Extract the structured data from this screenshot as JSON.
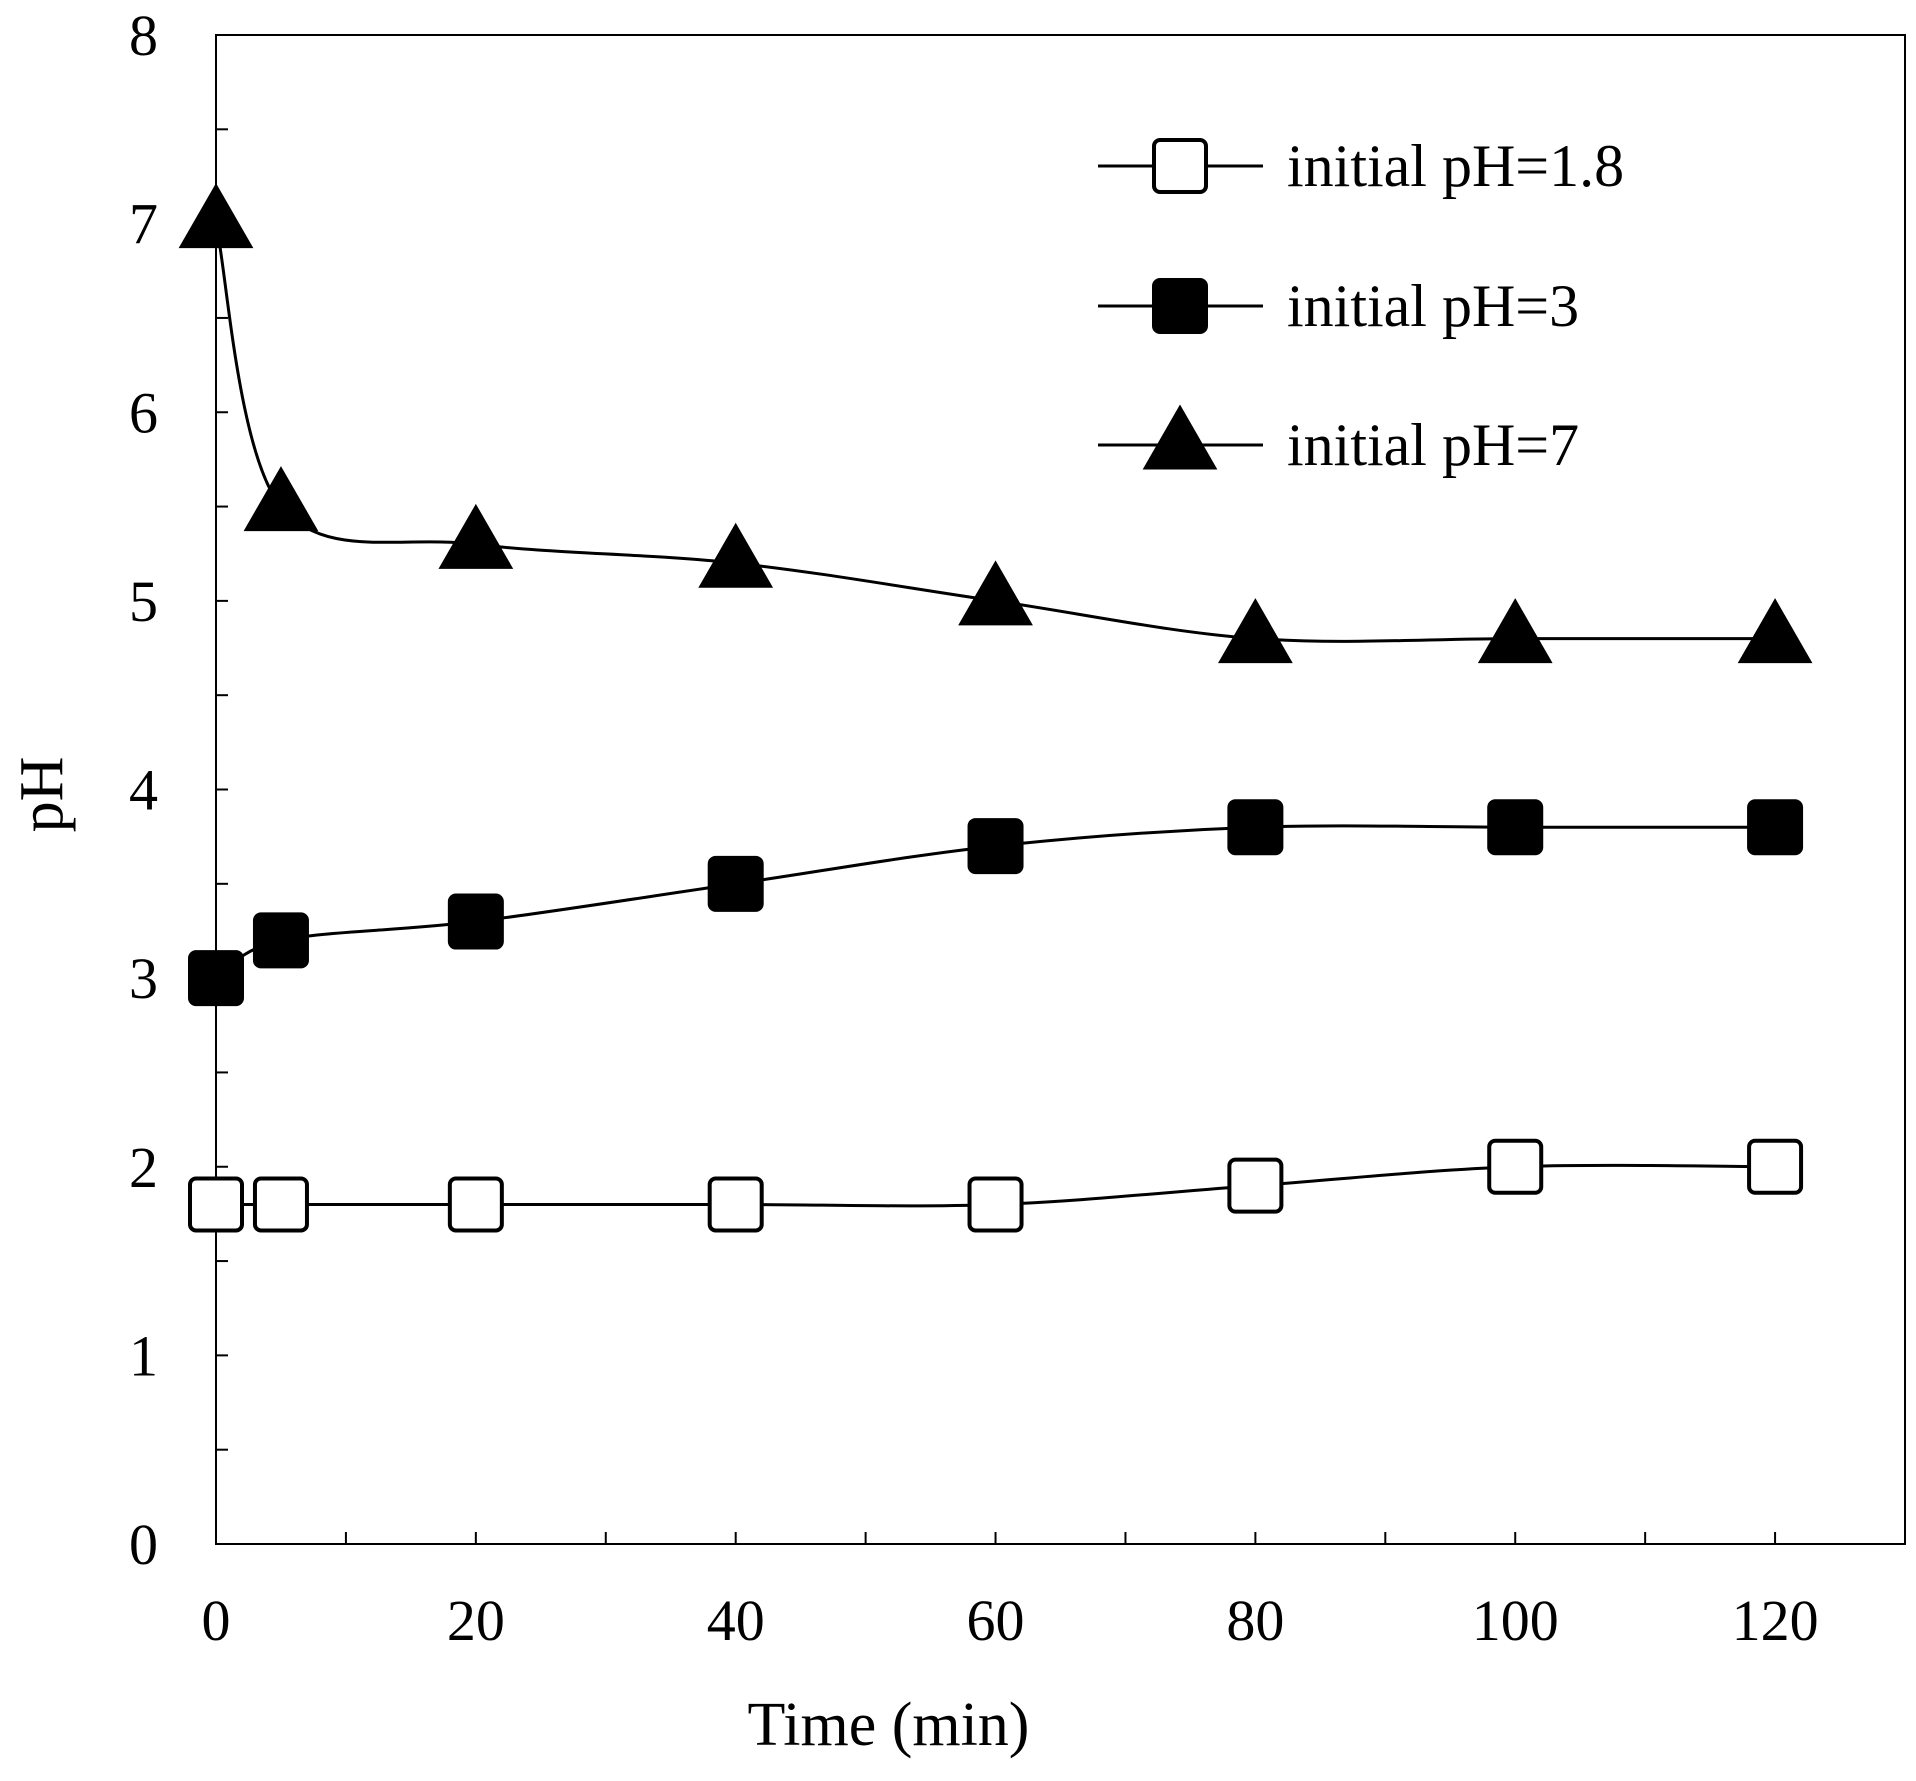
{
  "chart_data": {
    "type": "line",
    "title": "",
    "xlabel": "Time (min)",
    "ylabel": "pH",
    "xlim": [
      0,
      130
    ],
    "ylim": [
      0,
      8
    ],
    "x_ticks": [
      0,
      20,
      40,
      60,
      80,
      100,
      120
    ],
    "x_tick_labels": [
      "0",
      "20",
      "40",
      "60",
      "80",
      "100",
      "120"
    ],
    "y_ticks": [
      0,
      1,
      2,
      3,
      4,
      5,
      6,
      7,
      8
    ],
    "y_tick_labels": [
      "0",
      "1",
      "2",
      "3",
      "4",
      "5",
      "6",
      "7",
      "8"
    ],
    "x_minor_step": 10,
    "y_minor_step": 0.5,
    "grid": false,
    "legend_position": "top-right",
    "x": [
      0,
      5,
      20,
      40,
      60,
      80,
      100,
      120
    ],
    "series": [
      {
        "name": "initial pH=1.8",
        "marker": "square-open",
        "values": [
          1.8,
          1.8,
          1.8,
          1.8,
          1.8,
          1.9,
          2.0,
          2.0
        ]
      },
      {
        "name": "initial pH=3",
        "marker": "square-filled",
        "values": [
          3.0,
          3.2,
          3.3,
          3.5,
          3.7,
          3.8,
          3.8,
          3.8
        ]
      },
      {
        "name": "initial pH=7",
        "marker": "triangle-filled",
        "values": [
          7.0,
          5.5,
          5.3,
          5.2,
          5.0,
          4.8,
          4.8,
          4.8
        ]
      }
    ]
  }
}
